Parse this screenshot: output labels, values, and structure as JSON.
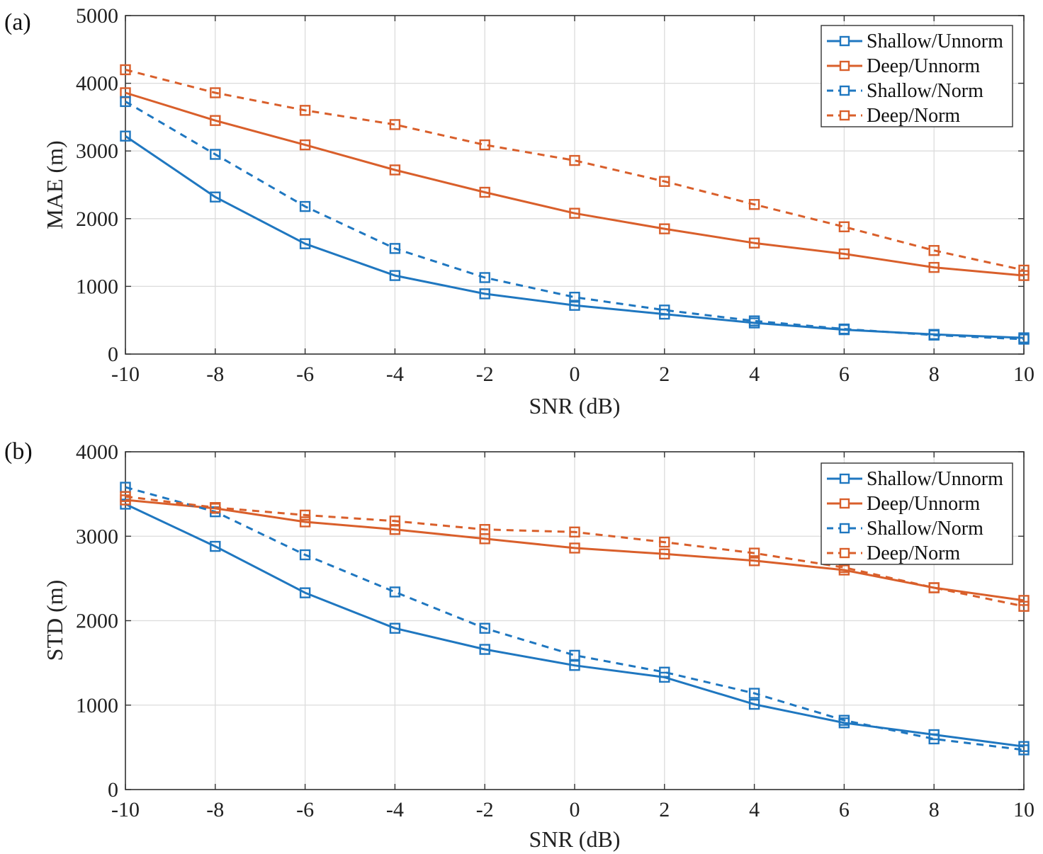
{
  "chart_data": [
    {
      "type": "line",
      "panel_label": "(a)",
      "xlabel": "SNR (dB)",
      "ylabel": "MAE (m)",
      "xlim": [
        -10,
        10
      ],
      "ylim": [
        0,
        5000
      ],
      "x_ticks": [
        -10,
        -8,
        -6,
        -4,
        -2,
        0,
        2,
        4,
        6,
        8,
        10
      ],
      "y_ticks": [
        0,
        1000,
        2000,
        3000,
        4000,
        5000
      ],
      "x_tick_labels": [
        "-10",
        "-8",
        "-6",
        "-4",
        "-2",
        "0",
        "2",
        "4",
        "6",
        "8",
        "10"
      ],
      "y_tick_labels": [
        "0",
        "1000",
        "2000",
        "3000",
        "4000",
        "5000"
      ],
      "grid": true,
      "legend_position": "top-right",
      "x": [
        -10,
        -8,
        -6,
        -4,
        -2,
        0,
        2,
        4,
        6,
        8,
        10
      ],
      "series": [
        {
          "name": "Shallow/Unnorm",
          "color": "#1f77c0",
          "dash": false,
          "marker": "square",
          "values": [
            3220,
            2320,
            1630,
            1160,
            890,
            720,
            590,
            460,
            360,
            290,
            240
          ]
        },
        {
          "name": "Deep/Unnorm",
          "color": "#d95f2b",
          "dash": false,
          "marker": "square",
          "values": [
            3860,
            3450,
            3090,
            2720,
            2390,
            2080,
            1850,
            1640,
            1480,
            1280,
            1160
          ]
        },
        {
          "name": "Shallow/Norm",
          "color": "#1f77c0",
          "dash": true,
          "marker": "square",
          "values": [
            3730,
            2950,
            2180,
            1560,
            1130,
            840,
            650,
            490,
            370,
            280,
            220
          ]
        },
        {
          "name": "Deep/Norm",
          "color": "#d95f2b",
          "dash": true,
          "marker": "square",
          "values": [
            4200,
            3860,
            3600,
            3390,
            3090,
            2860,
            2550,
            2210,
            1880,
            1530,
            1240
          ]
        }
      ]
    },
    {
      "type": "line",
      "panel_label": "(b)",
      "xlabel": "SNR (dB)",
      "ylabel": "STD (m)",
      "xlim": [
        -10,
        10
      ],
      "ylim": [
        0,
        4000
      ],
      "x_ticks": [
        -10,
        -8,
        -6,
        -4,
        -2,
        0,
        2,
        4,
        6,
        8,
        10
      ],
      "y_ticks": [
        0,
        1000,
        2000,
        3000,
        4000
      ],
      "x_tick_labels": [
        "-10",
        "-8",
        "-6",
        "-4",
        "-2",
        "0",
        "2",
        "4",
        "6",
        "8",
        "10"
      ],
      "y_tick_labels": [
        "0",
        "1000",
        "2000",
        "3000",
        "4000"
      ],
      "grid": true,
      "legend_position": "top-right",
      "x": [
        -10,
        -8,
        -6,
        -4,
        -2,
        0,
        2,
        4,
        6,
        8,
        10
      ],
      "series": [
        {
          "name": "Shallow/Unnorm",
          "color": "#1f77c0",
          "dash": false,
          "marker": "square",
          "values": [
            3380,
            2880,
            2330,
            1910,
            1660,
            1470,
            1330,
            1010,
            790,
            650,
            510
          ]
        },
        {
          "name": "Deep/Unnorm",
          "color": "#d95f2b",
          "dash": false,
          "marker": "square",
          "values": [
            3430,
            3330,
            3170,
            3080,
            2970,
            2860,
            2790,
            2710,
            2600,
            2390,
            2240
          ]
        },
        {
          "name": "Shallow/Norm",
          "color": "#1f77c0",
          "dash": true,
          "marker": "square",
          "values": [
            3580,
            3290,
            2780,
            2340,
            1910,
            1590,
            1390,
            1140,
            820,
            600,
            470
          ]
        },
        {
          "name": "Deep/Norm",
          "color": "#d95f2b",
          "dash": true,
          "marker": "square",
          "values": [
            3470,
            3340,
            3250,
            3180,
            3080,
            3050,
            2930,
            2800,
            2630,
            2390,
            2170
          ]
        }
      ]
    }
  ]
}
